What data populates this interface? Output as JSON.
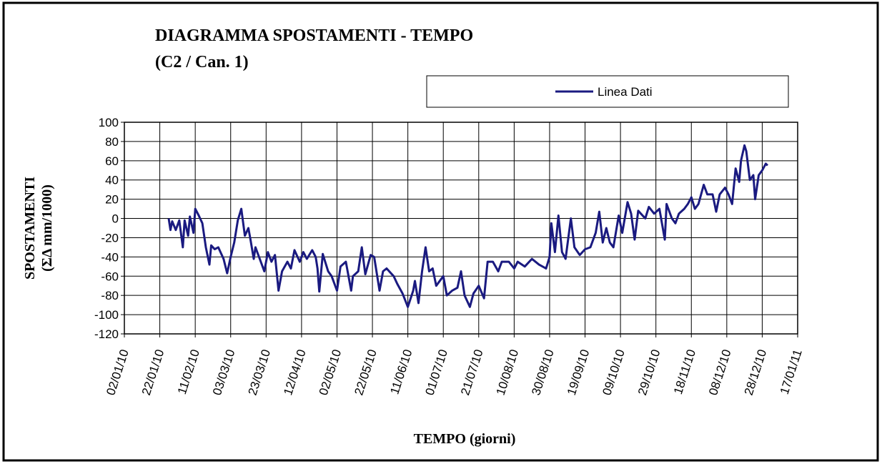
{
  "chart_data": {
    "type": "line",
    "title": "DIAGRAMMA SPOSTAMENTI - TEMPO",
    "subtitle": "(C2 / Can. 1)",
    "xlabel": "TEMPO (giorni)",
    "ylabel": [
      "SPOSTAMENTI",
      "(ΣΔ mm/1000)"
    ],
    "legend": "top-right",
    "grid": true,
    "xlim": [
      "2010-01-02",
      "2011-01-17"
    ],
    "xticks": [
      {
        "value": "2010-01-02",
        "label": "02/01/10"
      },
      {
        "value": "2010-01-22",
        "label": "22/01/10"
      },
      {
        "value": "2010-02-11",
        "label": "11/02/10"
      },
      {
        "value": "2010-03-03",
        "label": "03/03/10"
      },
      {
        "value": "2010-03-23",
        "label": "23/03/10"
      },
      {
        "value": "2010-04-12",
        "label": "12/04/10"
      },
      {
        "value": "2010-05-02",
        "label": "02/05/10"
      },
      {
        "value": "2010-05-22",
        "label": "22/05/10"
      },
      {
        "value": "2010-06-11",
        "label": "11/06/10"
      },
      {
        "value": "2010-07-01",
        "label": "01/07/10"
      },
      {
        "value": "2010-07-21",
        "label": "21/07/10"
      },
      {
        "value": "2010-08-10",
        "label": "10/08/10"
      },
      {
        "value": "2010-08-30",
        "label": "30/08/10"
      },
      {
        "value": "2010-09-19",
        "label": "19/09/10"
      },
      {
        "value": "2010-10-09",
        "label": "09/10/10"
      },
      {
        "value": "2010-10-29",
        "label": "29/10/10"
      },
      {
        "value": "2010-11-18",
        "label": "18/11/10"
      },
      {
        "value": "2010-12-08",
        "label": "08/12/10"
      },
      {
        "value": "2010-12-28",
        "label": "28/12/10"
      },
      {
        "value": "2011-01-17",
        "label": "17/01/11"
      }
    ],
    "ylim": [
      -120,
      100
    ],
    "yticks": [
      -120,
      -100,
      -80,
      -60,
      -40,
      -20,
      0,
      20,
      40,
      60,
      80,
      100
    ],
    "x": [
      "2010-01-27",
      "2010-01-28",
      "2010-01-29",
      "2010-01-31",
      "2010-02-02",
      "2010-02-04",
      "2010-02-05",
      "2010-02-07",
      "2010-02-08",
      "2010-02-10",
      "2010-02-11",
      "2010-02-13",
      "2010-02-15",
      "2010-02-17",
      "2010-02-19",
      "2010-02-20",
      "2010-02-22",
      "2010-02-24",
      "2010-02-27",
      "2010-03-01",
      "2010-03-03",
      "2010-03-05",
      "2010-03-07",
      "2010-03-09",
      "2010-03-11",
      "2010-03-13",
      "2010-03-14",
      "2010-03-16",
      "2010-03-17",
      "2010-03-20",
      "2010-03-22",
      "2010-03-24",
      "2010-03-26",
      "2010-03-28",
      "2010-03-30",
      "2010-04-01",
      "2010-04-04",
      "2010-04-06",
      "2010-04-08",
      "2010-04-11",
      "2010-04-13",
      "2010-04-15",
      "2010-04-18",
      "2010-04-20",
      "2010-04-21",
      "2010-04-22",
      "2010-04-24",
      "2010-04-27",
      "2010-04-29",
      "2010-05-02",
      "2010-05-04",
      "2010-05-07",
      "2010-05-10",
      "2010-05-11",
      "2010-05-14",
      "2010-05-16",
      "2010-05-18",
      "2010-05-21",
      "2010-05-23",
      "2010-05-26",
      "2010-05-28",
      "2010-05-30",
      "2010-06-03",
      "2010-06-05",
      "2010-06-08",
      "2010-06-11",
      "2010-06-14",
      "2010-06-15",
      "2010-06-17",
      "2010-06-19",
      "2010-06-21",
      "2010-06-23",
      "2010-06-25",
      "2010-06-27",
      "2010-07-01",
      "2010-07-03",
      "2010-07-06",
      "2010-07-09",
      "2010-07-11",
      "2010-07-13",
      "2010-07-16",
      "2010-07-18",
      "2010-07-21",
      "2010-07-24",
      "2010-07-26",
      "2010-07-29",
      "2010-08-01",
      "2010-08-03",
      "2010-08-07",
      "2010-08-10",
      "2010-08-12",
      "2010-08-16",
      "2010-08-20",
      "2010-08-24",
      "2010-08-28",
      "2010-08-30",
      "2010-08-31",
      "2010-09-02",
      "2010-09-04",
      "2010-09-06",
      "2010-09-08",
      "2010-09-11",
      "2010-09-13",
      "2010-09-16",
      "2010-09-19",
      "2010-09-22",
      "2010-09-25",
      "2010-09-27",
      "2010-09-29",
      "2010-10-01",
      "2010-10-03",
      "2010-10-05",
      "2010-10-08",
      "2010-10-10",
      "2010-10-13",
      "2010-10-15",
      "2010-10-17",
      "2010-10-19",
      "2010-10-23",
      "2010-10-25",
      "2010-10-28",
      "2010-10-31",
      "2010-11-03",
      "2010-11-04",
      "2010-11-07",
      "2010-11-09",
      "2010-11-11",
      "2010-11-14",
      "2010-11-16",
      "2010-11-18",
      "2010-11-20",
      "2010-11-22",
      "2010-11-25",
      "2010-11-27",
      "2010-11-30",
      "2010-12-02",
      "2010-12-04",
      "2010-12-07",
      "2010-12-09",
      "2010-12-11",
      "2010-12-13",
      "2010-12-15",
      "2010-12-16",
      "2010-12-18",
      "2010-12-19",
      "2010-12-21",
      "2010-12-23",
      "2010-12-24",
      "2010-12-26",
      "2010-12-28",
      "2010-12-30",
      "2010-12-31"
    ],
    "series": [
      {
        "name": "Linea Dati",
        "color": "#1a1a80",
        "values": [
          0,
          -12,
          -3,
          -12,
          -2,
          -30,
          -2,
          -18,
          2,
          -15,
          10,
          3,
          -5,
          -30,
          -48,
          -28,
          -32,
          -30,
          -42,
          -57,
          -40,
          -25,
          -2,
          10,
          -18,
          -10,
          -20,
          -42,
          -30,
          -45,
          -55,
          -35,
          -45,
          -38,
          -75,
          -55,
          -45,
          -52,
          -33,
          -45,
          -35,
          -42,
          -33,
          -40,
          -52,
          -76,
          -37,
          -55,
          -60,
          -75,
          -50,
          -45,
          -75,
          -60,
          -55,
          -30,
          -58,
          -38,
          -40,
          -75,
          -55,
          -52,
          -60,
          -68,
          -78,
          -92,
          -75,
          -65,
          -88,
          -55,
          -30,
          -55,
          -52,
          -70,
          -60,
          -80,
          -75,
          -72,
          -55,
          -80,
          -92,
          -78,
          -70,
          -83,
          -45,
          -45,
          -55,
          -45,
          -45,
          -52,
          -45,
          -50,
          -42,
          -48,
          -52,
          -40,
          -5,
          -35,
          3,
          -35,
          -42,
          0,
          -30,
          -38,
          -32,
          -30,
          -15,
          7,
          -25,
          -10,
          -25,
          -30,
          3,
          -15,
          17,
          5,
          -22,
          8,
          0,
          12,
          5,
          10,
          -22,
          15,
          0,
          -5,
          5,
          10,
          15,
          22,
          10,
          15,
          35,
          25,
          25,
          7,
          25,
          32,
          25,
          15,
          52,
          38,
          60,
          76,
          70,
          40,
          45,
          20,
          45,
          50,
          57,
          55
        ]
      }
    ]
  }
}
